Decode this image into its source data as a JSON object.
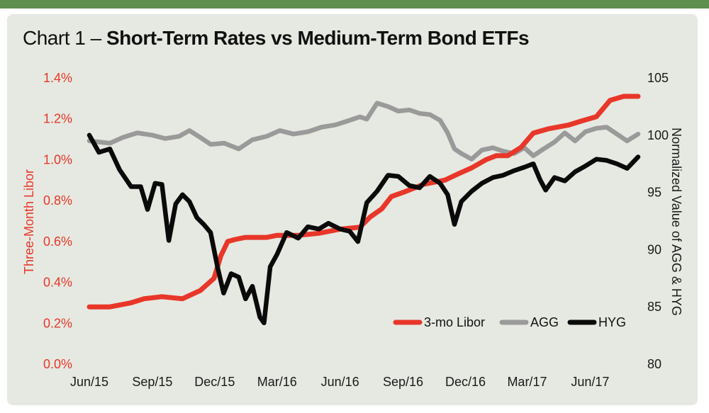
{
  "title": {
    "prefix": "Chart 1 – ",
    "main": "Short-Term Rates vs Medium-Term Bond ETFs"
  },
  "colors": {
    "libor": "#e8372a",
    "agg": "#9a9a9a",
    "hyg": "#0a0a0a",
    "background": "#e6e9e1",
    "topbar": "#5e8f4e"
  },
  "chart_data": {
    "type": "line",
    "title": "Chart 1 – Short-Term Rates vs Medium-Term Bond ETFs",
    "ylabel_left": "Three-Month Libor",
    "ylabel_right": "Normalized Value of AGG & HYG",
    "ylim_left": [
      0.0,
      1.4
    ],
    "ylim_right": [
      80,
      105
    ],
    "yticks_left": [
      "0.0%",
      "0.2%",
      "0.4%",
      "0.6%",
      "0.8%",
      "1.0%",
      "1.2%",
      "1.4%"
    ],
    "yticks_right": [
      "80",
      "85",
      "90",
      "95",
      "100",
      "105"
    ],
    "xticks": [
      "Jun/15",
      "Sep/15",
      "Dec/15",
      "Mar/16",
      "Jun/16",
      "Sep/16",
      "Dec/16",
      "Mar/17",
      "Jun/17"
    ],
    "xlim": [
      "2015-06-01",
      "2017-08-10"
    ],
    "grid": false,
    "legend_position": "bottom-right",
    "series": [
      {
        "name": "3-mo Libor",
        "axis": "left",
        "x": [
          "2015-06-01",
          "2015-07-01",
          "2015-08-01",
          "2015-08-20",
          "2015-09-15",
          "2015-10-15",
          "2015-11-10",
          "2015-11-30",
          "2015-12-10",
          "2015-12-20",
          "2015-12-31",
          "2016-01-15",
          "2016-02-01",
          "2016-02-15",
          "2016-03-01",
          "2016-03-15",
          "2016-04-01",
          "2016-05-01",
          "2016-06-01",
          "2016-06-30",
          "2016-07-15",
          "2016-08-01",
          "2016-08-15",
          "2016-09-01",
          "2016-10-01",
          "2016-11-01",
          "2016-11-20",
          "2016-12-10",
          "2016-12-31",
          "2017-01-15",
          "2017-02-01",
          "2017-02-20",
          "2017-03-10",
          "2017-03-31",
          "2017-04-15",
          "2017-05-01",
          "2017-05-20",
          "2017-06-10",
          "2017-06-30",
          "2017-07-20",
          "2017-08-10"
        ],
        "y": [
          0.28,
          0.28,
          0.3,
          0.32,
          0.33,
          0.32,
          0.36,
          0.42,
          0.53,
          0.6,
          0.61,
          0.62,
          0.62,
          0.62,
          0.63,
          0.63,
          0.63,
          0.64,
          0.66,
          0.67,
          0.72,
          0.76,
          0.82,
          0.84,
          0.88,
          0.9,
          0.93,
          0.96,
          1.0,
          1.02,
          1.02,
          1.06,
          1.13,
          1.15,
          1.16,
          1.17,
          1.19,
          1.21,
          1.29,
          1.31,
          1.31
        ]
      },
      {
        "name": "AGG",
        "axis": "right",
        "x": [
          "2015-06-01",
          "2015-07-01",
          "2015-07-20",
          "2015-08-10",
          "2015-09-01",
          "2015-09-20",
          "2015-10-10",
          "2015-10-25",
          "2015-11-10",
          "2015-11-25",
          "2015-12-15",
          "2016-01-05",
          "2016-01-25",
          "2016-02-15",
          "2016-03-05",
          "2016-03-25",
          "2016-04-15",
          "2016-05-05",
          "2016-05-25",
          "2016-06-10",
          "2016-06-30",
          "2016-07-10",
          "2016-07-25",
          "2016-08-10",
          "2016-08-25",
          "2016-09-10",
          "2016-09-25",
          "2016-10-10",
          "2016-10-25",
          "2016-11-05",
          "2016-11-15",
          "2016-11-25",
          "2016-12-10",
          "2016-12-25",
          "2017-01-10",
          "2017-01-25",
          "2017-02-10",
          "2017-02-25",
          "2017-03-10",
          "2017-03-25",
          "2017-04-10",
          "2017-04-25",
          "2017-05-10",
          "2017-05-25",
          "2017-06-10",
          "2017-06-25",
          "2017-07-10",
          "2017-07-25",
          "2017-08-10"
        ],
        "y": [
          99.5,
          99.3,
          99.8,
          100.2,
          100.0,
          99.7,
          99.9,
          100.4,
          99.8,
          99.2,
          99.3,
          98.8,
          99.6,
          99.9,
          100.4,
          100.1,
          100.3,
          100.7,
          100.9,
          101.2,
          101.6,
          101.4,
          102.8,
          102.5,
          102.1,
          102.2,
          101.9,
          101.8,
          101.3,
          100.2,
          98.8,
          98.4,
          97.9,
          98.7,
          98.9,
          98.6,
          98.4,
          98.9,
          98.2,
          98.8,
          99.4,
          100.2,
          99.5,
          100.3,
          100.6,
          100.7,
          100.1,
          99.5,
          100.1
        ]
      },
      {
        "name": "HYG",
        "axis": "right",
        "x": [
          "2015-06-01",
          "2015-06-15",
          "2015-07-01",
          "2015-07-15",
          "2015-08-01",
          "2015-08-15",
          "2015-08-25",
          "2015-09-05",
          "2015-09-15",
          "2015-09-25",
          "2015-10-05",
          "2015-10-15",
          "2015-10-25",
          "2015-11-05",
          "2015-11-15",
          "2015-11-25",
          "2015-12-05",
          "2015-12-14",
          "2015-12-25",
          "2016-01-05",
          "2016-01-15",
          "2016-01-25",
          "2016-02-05",
          "2016-02-11",
          "2016-02-20",
          "2016-03-01",
          "2016-03-15",
          "2016-04-01",
          "2016-04-15",
          "2016-05-01",
          "2016-05-15",
          "2016-06-01",
          "2016-06-15",
          "2016-06-27",
          "2016-07-10",
          "2016-07-25",
          "2016-08-10",
          "2016-08-25",
          "2016-09-10",
          "2016-09-25",
          "2016-10-10",
          "2016-10-25",
          "2016-11-05",
          "2016-11-15",
          "2016-11-25",
          "2016-12-10",
          "2016-12-25",
          "2017-01-10",
          "2017-01-25",
          "2017-02-10",
          "2017-02-25",
          "2017-03-10",
          "2017-03-20",
          "2017-03-28",
          "2017-04-10",
          "2017-04-25",
          "2017-05-10",
          "2017-05-25",
          "2017-06-10",
          "2017-06-25",
          "2017-07-10",
          "2017-07-25",
          "2017-08-10"
        ],
        "y": [
          100.0,
          98.5,
          98.8,
          97.0,
          95.5,
          95.5,
          93.5,
          95.8,
          95.7,
          90.8,
          94.0,
          94.8,
          94.2,
          92.8,
          92.2,
          91.5,
          88.5,
          86.2,
          87.9,
          87.6,
          85.7,
          86.8,
          84.1,
          83.6,
          88.5,
          89.6,
          91.5,
          91.0,
          92.0,
          91.8,
          92.3,
          91.8,
          91.6,
          90.7,
          94.1,
          95.1,
          96.5,
          96.4,
          95.6,
          95.4,
          96.4,
          95.8,
          94.8,
          92.2,
          94.2,
          95.1,
          95.8,
          96.3,
          96.5,
          96.9,
          97.2,
          97.5,
          96.1,
          95.2,
          96.3,
          96.0,
          96.8,
          97.3,
          97.9,
          97.8,
          97.5,
          97.1,
          98.1
        ]
      }
    ]
  }
}
